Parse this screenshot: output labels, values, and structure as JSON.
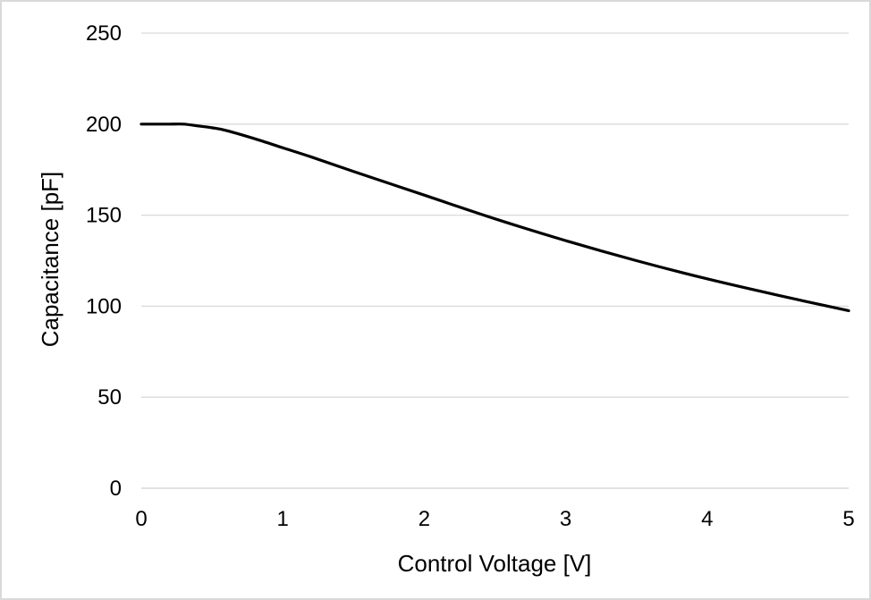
{
  "chart_data": {
    "type": "line",
    "title": "",
    "xlabel": "Control Voltage [V]",
    "ylabel": "Capacitance [pF]",
    "xlim": [
      0,
      5
    ],
    "ylim": [
      0,
      250
    ],
    "x_ticks": [
      0,
      1,
      2,
      3,
      4,
      5
    ],
    "y_ticks": [
      0,
      50,
      100,
      150,
      200,
      250
    ],
    "x_tick_labels": [
      "0",
      "1",
      "2",
      "3",
      "4",
      "5"
    ],
    "y_tick_labels": [
      "0",
      "50",
      "100",
      "150",
      "200",
      "250"
    ],
    "grid": {
      "horizontal": true,
      "vertical": false
    },
    "legend": "none",
    "series": [
      {
        "color": "#000000",
        "x": [
          0,
          0.1,
          0.2,
          0.3,
          0.4,
          0.5,
          0.6,
          0.8,
          1.0,
          1.2,
          1.5,
          2.0,
          2.5,
          3.0,
          3.5,
          4.0,
          4.5,
          5.0
        ],
        "y": [
          200,
          200,
          200,
          200,
          199,
          198,
          196.5,
          192,
          187,
          182,
          174,
          161,
          148,
          136,
          125,
          115,
          106,
          97.5
        ]
      }
    ]
  },
  "colors": {
    "line": "#000000",
    "gridline": "#d9d9d9",
    "axis": "#d9d9d9",
    "frame": "#d9d9d9",
    "background": "#ffffff"
  }
}
